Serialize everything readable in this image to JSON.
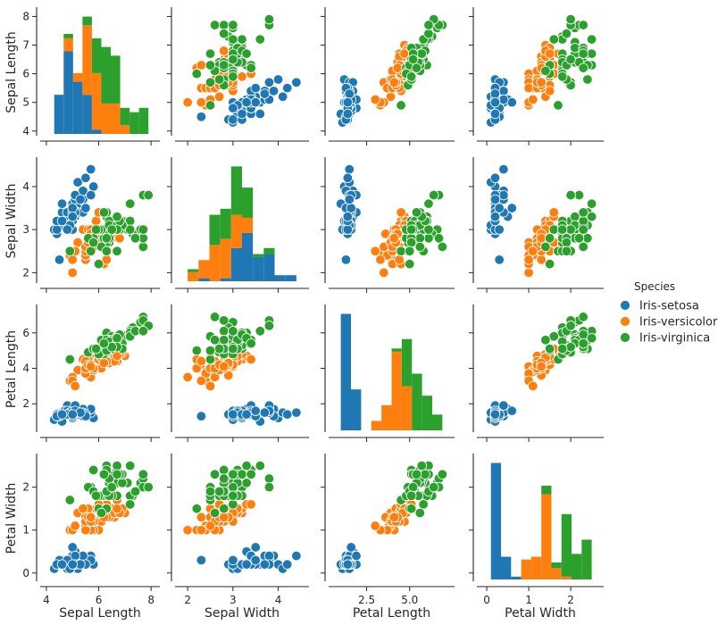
{
  "chart_data": {
    "type": "scatter",
    "title": "",
    "variables": [
      {
        "key": "sl",
        "label": "Sepal Length",
        "ticks": [
          4,
          5,
          6,
          7,
          8
        ],
        "x_ticks": [
          4,
          6,
          8
        ],
        "range": [
          3.9,
          8.2
        ]
      },
      {
        "key": "sw",
        "label": "Sepal Width",
        "ticks": [
          2,
          3,
          4
        ],
        "x_ticks": [
          2,
          3,
          4
        ],
        "range": [
          1.8,
          4.6
        ]
      },
      {
        "key": "pl",
        "label": "Petal Length",
        "ticks": [
          2,
          4,
          6
        ],
        "x_ticks": [
          2.5,
          5.0
        ],
        "x_tick_labels": [
          "2.5",
          "5.0"
        ],
        "range": [
          0.5,
          7.4
        ]
      },
      {
        "key": "pw",
        "label": "Petal Width",
        "ticks": [
          0,
          1,
          2
        ],
        "x_ticks": [
          0,
          1,
          2
        ],
        "range": [
          -0.15,
          2.7
        ]
      }
    ],
    "legend": {
      "title": "Species",
      "placement": "right",
      "entries": [
        {
          "name": "Iris-setosa",
          "color": "#1f77b4"
        },
        {
          "name": "Iris-versicolor",
          "color": "#ff7f0e"
        },
        {
          "name": "Iris-virginica",
          "color": "#2ca02c"
        }
      ]
    },
    "diagonal": "stacked histogram",
    "series": [
      {
        "name": "Iris-setosa",
        "color": "#1f77b4",
        "points": [
          [
            5.1,
            3.5,
            1.4,
            0.2
          ],
          [
            4.9,
            3.0,
            1.4,
            0.2
          ],
          [
            4.7,
            3.2,
            1.3,
            0.2
          ],
          [
            4.6,
            3.1,
            1.5,
            0.2
          ],
          [
            5.0,
            3.6,
            1.4,
            0.2
          ],
          [
            5.4,
            3.9,
            1.7,
            0.4
          ],
          [
            4.6,
            3.4,
            1.4,
            0.3
          ],
          [
            5.0,
            3.4,
            1.5,
            0.2
          ],
          [
            4.4,
            2.9,
            1.4,
            0.2
          ],
          [
            4.9,
            3.1,
            1.5,
            0.1
          ],
          [
            5.4,
            3.7,
            1.5,
            0.2
          ],
          [
            4.8,
            3.4,
            1.6,
            0.2
          ],
          [
            4.8,
            3.0,
            1.4,
            0.1
          ],
          [
            4.3,
            3.0,
            1.1,
            0.1
          ],
          [
            5.8,
            4.0,
            1.2,
            0.2
          ],
          [
            5.7,
            4.4,
            1.5,
            0.4
          ],
          [
            5.4,
            3.9,
            1.3,
            0.4
          ],
          [
            5.1,
            3.5,
            1.4,
            0.3
          ],
          [
            5.7,
            3.8,
            1.7,
            0.3
          ],
          [
            5.1,
            3.8,
            1.5,
            0.3
          ],
          [
            5.4,
            3.4,
            1.7,
            0.2
          ],
          [
            5.1,
            3.7,
            1.5,
            0.4
          ],
          [
            4.6,
            3.6,
            1.0,
            0.2
          ],
          [
            5.1,
            3.3,
            1.7,
            0.5
          ],
          [
            4.8,
            3.4,
            1.9,
            0.2
          ],
          [
            5.0,
            3.0,
            1.6,
            0.2
          ],
          [
            5.0,
            3.4,
            1.6,
            0.4
          ],
          [
            5.2,
            3.5,
            1.5,
            0.2
          ],
          [
            5.2,
            3.4,
            1.4,
            0.2
          ],
          [
            4.7,
            3.2,
            1.6,
            0.2
          ],
          [
            4.8,
            3.1,
            1.6,
            0.2
          ],
          [
            5.4,
            3.4,
            1.5,
            0.4
          ],
          [
            5.2,
            4.1,
            1.5,
            0.1
          ],
          [
            5.5,
            4.2,
            1.4,
            0.2
          ],
          [
            4.9,
            3.1,
            1.5,
            0.1
          ],
          [
            5.0,
            3.2,
            1.2,
            0.2
          ],
          [
            5.5,
            3.5,
            1.3,
            0.2
          ],
          [
            4.9,
            3.1,
            1.5,
            0.1
          ],
          [
            4.4,
            3.0,
            1.3,
            0.2
          ],
          [
            5.1,
            3.4,
            1.5,
            0.2
          ],
          [
            5.0,
            3.5,
            1.3,
            0.3
          ],
          [
            4.5,
            2.3,
            1.3,
            0.3
          ],
          [
            4.4,
            3.2,
            1.3,
            0.2
          ],
          [
            5.0,
            3.5,
            1.6,
            0.6
          ],
          [
            5.1,
            3.8,
            1.9,
            0.4
          ],
          [
            4.8,
            3.0,
            1.4,
            0.3
          ],
          [
            5.1,
            3.8,
            1.6,
            0.2
          ],
          [
            4.6,
            3.2,
            1.4,
            0.2
          ],
          [
            5.3,
            3.7,
            1.5,
            0.2
          ],
          [
            5.0,
            3.3,
            1.4,
            0.2
          ]
        ]
      },
      {
        "name": "Iris-versicolor",
        "color": "#ff7f0e",
        "points": [
          [
            7.0,
            3.2,
            4.7,
            1.4
          ],
          [
            6.4,
            3.2,
            4.5,
            1.5
          ],
          [
            6.9,
            3.1,
            4.9,
            1.5
          ],
          [
            5.5,
            2.3,
            4.0,
            1.3
          ],
          [
            6.5,
            2.8,
            4.6,
            1.5
          ],
          [
            5.7,
            2.8,
            4.5,
            1.3
          ],
          [
            6.3,
            3.3,
            4.7,
            1.6
          ],
          [
            4.9,
            2.4,
            3.3,
            1.0
          ],
          [
            6.6,
            2.9,
            4.6,
            1.3
          ],
          [
            5.2,
            2.7,
            3.9,
            1.4
          ],
          [
            5.0,
            2.0,
            3.5,
            1.0
          ],
          [
            5.9,
            3.0,
            4.2,
            1.5
          ],
          [
            6.0,
            2.2,
            4.0,
            1.0
          ],
          [
            6.1,
            2.9,
            4.7,
            1.4
          ],
          [
            5.6,
            2.9,
            3.6,
            1.3
          ],
          [
            6.7,
            3.1,
            4.4,
            1.4
          ],
          [
            5.6,
            3.0,
            4.5,
            1.5
          ],
          [
            5.8,
            2.7,
            4.1,
            1.0
          ],
          [
            6.2,
            2.2,
            4.5,
            1.5
          ],
          [
            5.6,
            2.5,
            3.9,
            1.1
          ],
          [
            5.9,
            3.2,
            4.8,
            1.8
          ],
          [
            6.1,
            2.8,
            4.0,
            1.3
          ],
          [
            6.3,
            2.5,
            4.9,
            1.5
          ],
          [
            6.1,
            2.8,
            4.7,
            1.2
          ],
          [
            6.4,
            2.9,
            4.3,
            1.3
          ],
          [
            6.6,
            3.0,
            4.4,
            1.4
          ],
          [
            6.8,
            2.8,
            4.8,
            1.4
          ],
          [
            6.7,
            3.0,
            5.0,
            1.7
          ],
          [
            6.0,
            2.9,
            4.5,
            1.5
          ],
          [
            5.7,
            2.6,
            3.5,
            1.0
          ],
          [
            5.5,
            2.4,
            3.8,
            1.1
          ],
          [
            5.5,
            2.4,
            3.7,
            1.0
          ],
          [
            5.8,
            2.7,
            3.9,
            1.2
          ],
          [
            6.0,
            2.7,
            5.1,
            1.6
          ],
          [
            5.4,
            3.0,
            4.5,
            1.5
          ],
          [
            6.0,
            3.4,
            4.5,
            1.6
          ],
          [
            6.7,
            3.1,
            4.7,
            1.5
          ],
          [
            6.3,
            2.3,
            4.4,
            1.3
          ],
          [
            5.6,
            3.0,
            4.1,
            1.3
          ],
          [
            5.5,
            2.5,
            4.0,
            1.3
          ],
          [
            5.5,
            2.6,
            4.4,
            1.2
          ],
          [
            6.1,
            3.0,
            4.6,
            1.4
          ],
          [
            5.8,
            2.6,
            4.0,
            1.2
          ],
          [
            5.0,
            2.3,
            3.3,
            1.0
          ],
          [
            5.6,
            2.7,
            4.2,
            1.3
          ],
          [
            5.7,
            3.0,
            4.2,
            1.2
          ],
          [
            5.7,
            2.9,
            4.2,
            1.3
          ],
          [
            6.2,
            2.9,
            4.3,
            1.3
          ],
          [
            5.1,
            2.5,
            3.0,
            1.1
          ],
          [
            5.7,
            2.8,
            4.1,
            1.3
          ]
        ]
      },
      {
        "name": "Iris-virginica",
        "color": "#2ca02c",
        "points": [
          [
            6.3,
            3.3,
            6.0,
            2.5
          ],
          [
            5.8,
            2.7,
            5.1,
            1.9
          ],
          [
            7.1,
            3.0,
            5.9,
            2.1
          ],
          [
            6.3,
            2.9,
            5.6,
            1.8
          ],
          [
            6.5,
            3.0,
            5.8,
            2.2
          ],
          [
            7.6,
            3.0,
            6.6,
            2.1
          ],
          [
            4.9,
            2.5,
            4.5,
            1.7
          ],
          [
            7.3,
            2.9,
            6.3,
            1.8
          ],
          [
            6.7,
            2.5,
            5.8,
            1.8
          ],
          [
            7.2,
            3.6,
            6.1,
            2.5
          ],
          [
            6.5,
            3.2,
            5.1,
            2.0
          ],
          [
            6.4,
            2.7,
            5.3,
            1.9
          ],
          [
            6.8,
            3.0,
            5.5,
            2.1
          ],
          [
            5.7,
            2.5,
            5.0,
            2.0
          ],
          [
            5.8,
            2.8,
            5.1,
            2.4
          ],
          [
            6.4,
            3.2,
            5.3,
            2.3
          ],
          [
            6.5,
            3.0,
            5.5,
            1.8
          ],
          [
            7.7,
            3.8,
            6.7,
            2.2
          ],
          [
            7.7,
            2.6,
            6.9,
            2.3
          ],
          [
            6.0,
            2.2,
            5.0,
            1.5
          ],
          [
            6.9,
            3.2,
            5.7,
            2.3
          ],
          [
            5.6,
            2.8,
            4.9,
            2.0
          ],
          [
            7.7,
            2.8,
            6.7,
            2.0
          ],
          [
            6.3,
            2.7,
            4.9,
            1.8
          ],
          [
            6.7,
            3.3,
            5.7,
            2.1
          ],
          [
            7.2,
            3.2,
            6.0,
            1.8
          ],
          [
            6.2,
            2.8,
            4.8,
            1.8
          ],
          [
            6.1,
            3.0,
            4.9,
            1.8
          ],
          [
            6.4,
            2.8,
            5.6,
            2.1
          ],
          [
            7.2,
            3.0,
            5.8,
            1.6
          ],
          [
            7.4,
            2.8,
            6.1,
            1.9
          ],
          [
            7.9,
            3.8,
            6.4,
            2.0
          ],
          [
            6.4,
            2.8,
            5.6,
            2.2
          ],
          [
            6.3,
            2.8,
            5.1,
            1.5
          ],
          [
            6.1,
            2.6,
            5.6,
            1.4
          ],
          [
            7.7,
            3.0,
            6.1,
            2.3
          ],
          [
            6.3,
            3.4,
            5.6,
            2.4
          ],
          [
            6.4,
            3.1,
            5.5,
            1.8
          ],
          [
            6.0,
            3.0,
            4.8,
            1.8
          ],
          [
            6.9,
            3.1,
            5.4,
            2.1
          ],
          [
            6.7,
            3.1,
            5.6,
            2.4
          ],
          [
            6.9,
            3.1,
            5.1,
            2.3
          ],
          [
            5.8,
            2.7,
            5.1,
            1.9
          ],
          [
            6.8,
            3.2,
            5.9,
            2.3
          ],
          [
            6.7,
            3.3,
            5.7,
            2.5
          ],
          [
            6.7,
            3.0,
            5.2,
            2.3
          ],
          [
            6.3,
            2.5,
            5.0,
            1.9
          ],
          [
            6.5,
            3.0,
            5.2,
            2.0
          ],
          [
            6.2,
            3.4,
            5.4,
            2.3
          ],
          [
            5.9,
            3.0,
            5.1,
            1.8
          ]
        ]
      }
    ]
  }
}
